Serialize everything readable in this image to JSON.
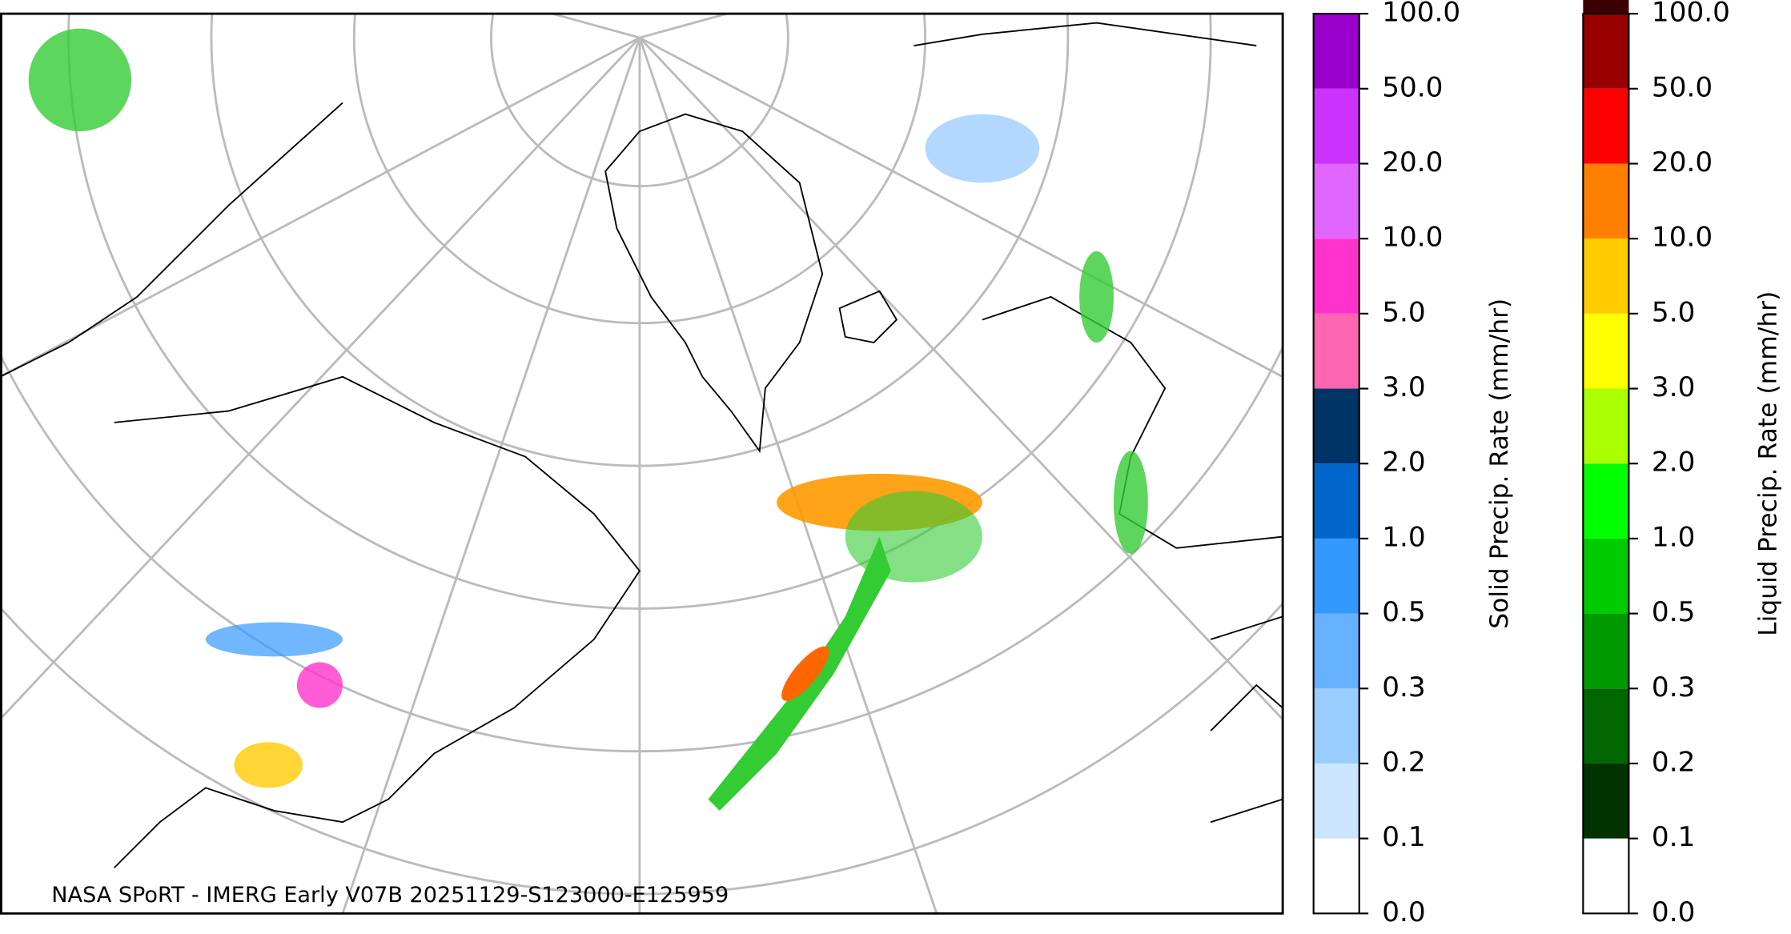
{
  "map": {
    "footer": "NASA SPoRT - IMERG Early V07B 20251129-S123000-E125959",
    "colorbars": [
      {
        "label": "Solid Precip. Rate (mm/hr)",
        "ticks": [
          {
            "value": 0,
            "label": "0.0"
          },
          {
            "value": 0.1,
            "label": "0.1"
          },
          {
            "value": 0.2,
            "label": "0.2"
          },
          {
            "value": 0.3,
            "label": "0.3"
          },
          {
            "value": 0.5,
            "label": "0.5"
          },
          {
            "value": 1,
            "label": "1.0"
          },
          {
            "value": 2,
            "label": "2.0"
          },
          {
            "value": 3,
            "label": "3.0"
          },
          {
            "value": 5,
            "label": "5.0"
          },
          {
            "value": 10,
            "label": "10.0"
          },
          {
            "value": 20,
            "label": "20.0"
          },
          {
            "value": 50,
            "label": "50.0"
          },
          {
            "value": 100,
            "label": "100.0"
          }
        ],
        "colors": [
          "#ffffff",
          "#cce5ff",
          "#99ccff",
          "#66b2ff",
          "#3399ff",
          "#0066cc",
          "#003366",
          "#ff66b2",
          "#ff33cc",
          "#e066ff",
          "#cc33ff",
          "#9900cc"
        ]
      },
      {
        "label": "Liquid Precip. Rate (mm/hr)",
        "ticks": [
          {
            "value": 0,
            "label": "0.0"
          },
          {
            "value": 0.1,
            "label": "0.1"
          },
          {
            "value": 0.2,
            "label": "0.2"
          },
          {
            "value": 0.3,
            "label": "0.3"
          },
          {
            "value": 0.5,
            "label": "0.5"
          },
          {
            "value": 1,
            "label": "1.0"
          },
          {
            "value": 2,
            "label": "2.0"
          },
          {
            "value": 3,
            "label": "3.0"
          },
          {
            "value": 5,
            "label": "5.0"
          },
          {
            "value": 10,
            "label": "10.0"
          },
          {
            "value": 20,
            "label": "20.0"
          },
          {
            "value": 50,
            "label": "50.0"
          },
          {
            "value": 100,
            "label": "100.0"
          }
        ],
        "colors": [
          "#ffffff",
          "#003300",
          "#006600",
          "#009900",
          "#00cc00",
          "#00ff00",
          "#aaff00",
          "#ffff00",
          "#ffcc00",
          "#ff8000",
          "#ff0000",
          "#990000",
          "#3a0000"
        ]
      }
    ]
  }
}
